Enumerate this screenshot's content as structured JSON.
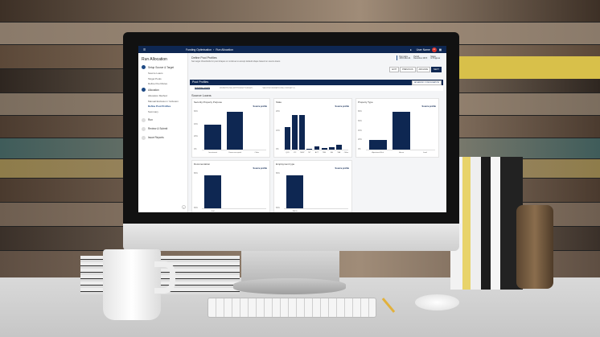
{
  "app": {
    "title": "Funding Optimisation",
    "breadcrumb": "Run Allocation",
    "user": "User Name",
    "avatar_initials": "UN"
  },
  "sidebar": {
    "title": "Run Allocation",
    "steps": [
      {
        "label": "Setup Source & Target",
        "done": true,
        "subs": [
          "Source Loans",
          "Target Pools",
          "Define Pool Rules"
        ]
      },
      {
        "label": "Allocation",
        "done": true,
        "subs": [
          "Allocation Method",
          "Manual Exclusion / Inclusion",
          "Define Pool Profiles",
          "Summary"
        ]
      },
      {
        "label": "Run",
        "done": false,
        "subs": []
      },
      {
        "label": "Review & Submit",
        "done": false,
        "subs": []
      },
      {
        "label": "Issue Reports",
        "done": false,
        "subs": []
      }
    ],
    "active_sub": "Define Pool Profiles"
  },
  "header": {
    "title": "Define Pool Profiles",
    "desc": "Set target thresholds for pool shapes or continue to accept default shape based on source loans",
    "info": [
      {
        "k": "Run name",
        "v": "20XX-Run-01"
      },
      {
        "k": "Period",
        "v": "December 20XX"
      },
      {
        "k": "Status",
        "v": "In Progress"
      }
    ],
    "buttons": [
      "EXIT",
      "PREVIOUS",
      "ARCHIVE",
      "NEXT"
    ]
  },
  "panel": {
    "title": "Pool Profiles",
    "config_button": "ADVANCED CONFIGURATION",
    "tabs": [
      "SOURCE LOANS",
      "WAREHOUSE (WITHDRAW TARGET)",
      "SECOND WAREHOUSE (TARGET 2)"
    ],
    "section": "Source Loans",
    "source_profile": "Source profile"
  },
  "colors": {
    "brand": "#0e2752",
    "avatar": "#d9342b"
  },
  "chart_data": [
    {
      "type": "bar",
      "title": "Security Property Purpose",
      "categories": [
        "Investment",
        "Owner-occupied",
        "Other"
      ],
      "values": [
        40,
        60,
        0
      ],
      "yticks": [
        "0%",
        "20%",
        "40%",
        "60%"
      ],
      "ylim": [
        0,
        60
      ]
    },
    {
      "type": "bar",
      "title": "State",
      "categories": [
        "QLD",
        "VIC",
        "NSW",
        "NT",
        "ACT",
        "TAS",
        "SA",
        "WA",
        "Other"
      ],
      "values": [
        15,
        23,
        23,
        0.3,
        2,
        1,
        1.5,
        3,
        0
      ],
      "yticks": [
        "0%",
        "10%",
        "20%"
      ],
      "ylim": [
        0,
        25
      ]
    },
    {
      "type": "bar",
      "title": "Property Type",
      "categories": [
        "Apartment/Unit",
        "House",
        "Land"
      ],
      "values": [
        20,
        80,
        0
      ],
      "yticks": [
        "0%",
        "20%",
        "40%",
        "60%",
        "80%"
      ],
      "ylim": [
        0,
        80
      ]
    },
    {
      "type": "bar",
      "title": "Documentation",
      "categories": [
        "Full"
      ],
      "values": [
        95
      ],
      "yticks": [
        "60%",
        "80%"
      ],
      "ylim": [
        0,
        100
      ]
    },
    {
      "type": "bar",
      "title": "Employment type",
      "categories": [
        "PAYG"
      ],
      "values": [
        95
      ],
      "yticks": [
        "60%",
        "80%"
      ],
      "ylim": [
        0,
        100
      ]
    }
  ]
}
